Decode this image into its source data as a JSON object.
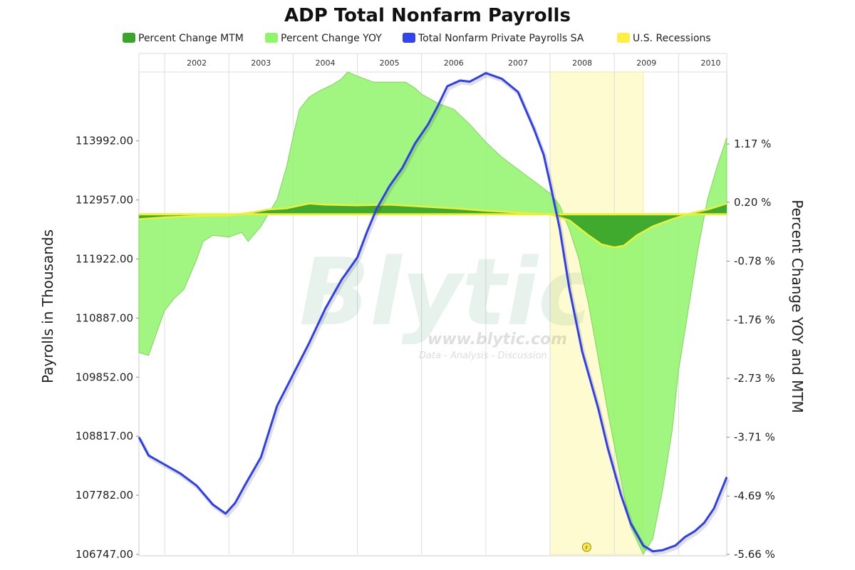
{
  "chart_data": {
    "type": "area",
    "title": "ADP Total Nonfarm Payrolls",
    "legend_placement": "top",
    "legend": [
      {
        "label": "Percent Change MTM",
        "color": "#3aa52a"
      },
      {
        "label": "Percent Change YOY",
        "color": "#8ff56a"
      },
      {
        "label": "Total Nonfarm Private Payrolls SA",
        "color": "#3344ee"
      },
      {
        "label": "U.S. Recessions",
        "color": "#ffee44"
      }
    ],
    "year_labels": [
      "2002",
      "2003",
      "2004",
      "2005",
      "2006",
      "2007",
      "2008",
      "2009",
      "2010"
    ],
    "y_left": {
      "label": "Payrolls in Thousands",
      "ticks": [
        "113992.00",
        "112957.00",
        "111922.00",
        "110887.00",
        "109852.00",
        "108817.00",
        "107782.00",
        "106747.00"
      ],
      "tick_values": [
        113992,
        112957,
        111922,
        110887,
        109852,
        108817,
        107782,
        106747
      ],
      "range": [
        106747,
        115200
      ]
    },
    "y_right": {
      "label": "Percent Change YOY and MTM",
      "ticks": [
        "1.17 %",
        "0.20 %",
        "-0.78 %",
        "-1.76 %",
        "-2.73 %",
        "-3.71 %",
        "-4.69 %",
        "-5.66 %"
      ],
      "tick_values": [
        1.17,
        0.2,
        -0.78,
        -1.76,
        -2.73,
        -3.71,
        -4.69,
        -5.66
      ],
      "range": [
        -5.66,
        2.37
      ]
    },
    "x_range": [
      2001.6,
      2010.75
    ],
    "recessions": [
      [
        2008.0,
        2009.45
      ]
    ],
    "recession_marker": "r",
    "series": [
      {
        "name": "Percent Change YOY",
        "values": [
          [
            2001.6,
            -2.3
          ],
          [
            2001.75,
            -2.35
          ],
          [
            2001.9,
            -1.9
          ],
          [
            2002.0,
            -1.6
          ],
          [
            2002.15,
            -1.4
          ],
          [
            2002.3,
            -1.25
          ],
          [
            2002.5,
            -0.75
          ],
          [
            2002.6,
            -0.45
          ],
          [
            2002.75,
            -0.35
          ],
          [
            2003.0,
            -0.38
          ],
          [
            2003.2,
            -0.3
          ],
          [
            2003.3,
            -0.45
          ],
          [
            2003.5,
            -0.2
          ],
          [
            2003.75,
            0.25
          ],
          [
            2003.9,
            0.8
          ],
          [
            2004.0,
            1.3
          ],
          [
            2004.1,
            1.75
          ],
          [
            2004.25,
            1.95
          ],
          [
            2004.4,
            2.05
          ],
          [
            2004.6,
            2.15
          ],
          [
            2004.75,
            2.25
          ],
          [
            2004.85,
            2.37
          ],
          [
            2005.0,
            2.3
          ],
          [
            2005.25,
            2.2
          ],
          [
            2005.5,
            2.2
          ],
          [
            2005.75,
            2.2
          ],
          [
            2005.9,
            2.1
          ],
          [
            2006.0,
            2.0
          ],
          [
            2006.25,
            1.85
          ],
          [
            2006.5,
            1.75
          ],
          [
            2006.75,
            1.5
          ],
          [
            2007.0,
            1.2
          ],
          [
            2007.25,
            0.95
          ],
          [
            2007.5,
            0.75
          ],
          [
            2007.75,
            0.55
          ],
          [
            2008.0,
            0.35
          ],
          [
            2008.15,
            0.15
          ],
          [
            2008.3,
            -0.25
          ],
          [
            2008.45,
            -0.75
          ],
          [
            2008.6,
            -1.5
          ],
          [
            2008.75,
            -2.4
          ],
          [
            2008.9,
            -3.3
          ],
          [
            2009.1,
            -4.4
          ],
          [
            2009.25,
            -5.2
          ],
          [
            2009.45,
            -5.66
          ],
          [
            2009.6,
            -5.4
          ],
          [
            2009.75,
            -4.6
          ],
          [
            2009.9,
            -3.6
          ],
          [
            2010.0,
            -2.6
          ],
          [
            2010.15,
            -1.6
          ],
          [
            2010.3,
            -0.6
          ],
          [
            2010.45,
            0.25
          ],
          [
            2010.6,
            0.8
          ],
          [
            2010.75,
            1.28
          ]
        ]
      },
      {
        "name": "Percent Change MTM",
        "values": [
          [
            2001.6,
            -0.08
          ],
          [
            2002.0,
            -0.05
          ],
          [
            2002.5,
            -0.03
          ],
          [
            2003.0,
            -0.02
          ],
          [
            2003.35,
            0.03
          ],
          [
            2003.6,
            0.08
          ],
          [
            2003.9,
            0.1
          ],
          [
            2004.25,
            0.18
          ],
          [
            2004.5,
            0.16
          ],
          [
            2005.0,
            0.15
          ],
          [
            2005.5,
            0.16
          ],
          [
            2006.0,
            0.13
          ],
          [
            2006.5,
            0.1
          ],
          [
            2007.0,
            0.06
          ],
          [
            2007.5,
            0.03
          ],
          [
            2008.0,
            0.0
          ],
          [
            2008.3,
            -0.1
          ],
          [
            2008.6,
            -0.35
          ],
          [
            2008.8,
            -0.5
          ],
          [
            2009.0,
            -0.55
          ],
          [
            2009.15,
            -0.52
          ],
          [
            2009.35,
            -0.35
          ],
          [
            2009.6,
            -0.2
          ],
          [
            2009.9,
            -0.08
          ],
          [
            2010.2,
            0.02
          ],
          [
            2010.45,
            0.08
          ],
          [
            2010.6,
            0.13
          ],
          [
            2010.75,
            0.18
          ]
        ]
      },
      {
        "name": "Total Nonfarm Private Payrolls SA",
        "values": [
          [
            2001.6,
            108800
          ],
          [
            2001.75,
            108480
          ],
          [
            2002.0,
            108320
          ],
          [
            2002.25,
            108160
          ],
          [
            2002.5,
            107950
          ],
          [
            2002.75,
            107620
          ],
          [
            2002.95,
            107460
          ],
          [
            2003.1,
            107650
          ],
          [
            2003.25,
            107960
          ],
          [
            2003.5,
            108450
          ],
          [
            2003.75,
            109350
          ],
          [
            2004.0,
            109900
          ],
          [
            2004.25,
            110450
          ],
          [
            2004.5,
            111050
          ],
          [
            2004.75,
            111550
          ],
          [
            2005.0,
            111950
          ],
          [
            2005.15,
            112400
          ],
          [
            2005.3,
            112800
          ],
          [
            2005.5,
            113200
          ],
          [
            2005.7,
            113520
          ],
          [
            2005.9,
            113950
          ],
          [
            2006.1,
            114280
          ],
          [
            2006.25,
            114600
          ],
          [
            2006.4,
            114950
          ],
          [
            2006.6,
            115050
          ],
          [
            2006.75,
            115030
          ],
          [
            2006.9,
            115120
          ],
          [
            2007.0,
            115180
          ],
          [
            2007.25,
            115080
          ],
          [
            2007.5,
            114850
          ],
          [
            2007.75,
            114200
          ],
          [
            2007.9,
            113750
          ],
          [
            2008.0,
            113250
          ],
          [
            2008.15,
            112450
          ],
          [
            2008.3,
            111400
          ],
          [
            2008.5,
            110300
          ],
          [
            2008.75,
            109300
          ],
          [
            2008.9,
            108600
          ],
          [
            2009.1,
            107800
          ],
          [
            2009.25,
            107300
          ],
          [
            2009.45,
            106900
          ],
          [
            2009.6,
            106800
          ],
          [
            2009.75,
            106820
          ],
          [
            2009.95,
            106900
          ],
          [
            2010.1,
            107050
          ],
          [
            2010.25,
            107150
          ],
          [
            2010.4,
            107300
          ],
          [
            2010.55,
            107550
          ],
          [
            2010.75,
            108100
          ]
        ]
      }
    ]
  },
  "watermark": {
    "brand": "Blytic",
    "url": "www.blytic.com",
    "tagline": "Data - Analysis - Discussion"
  }
}
